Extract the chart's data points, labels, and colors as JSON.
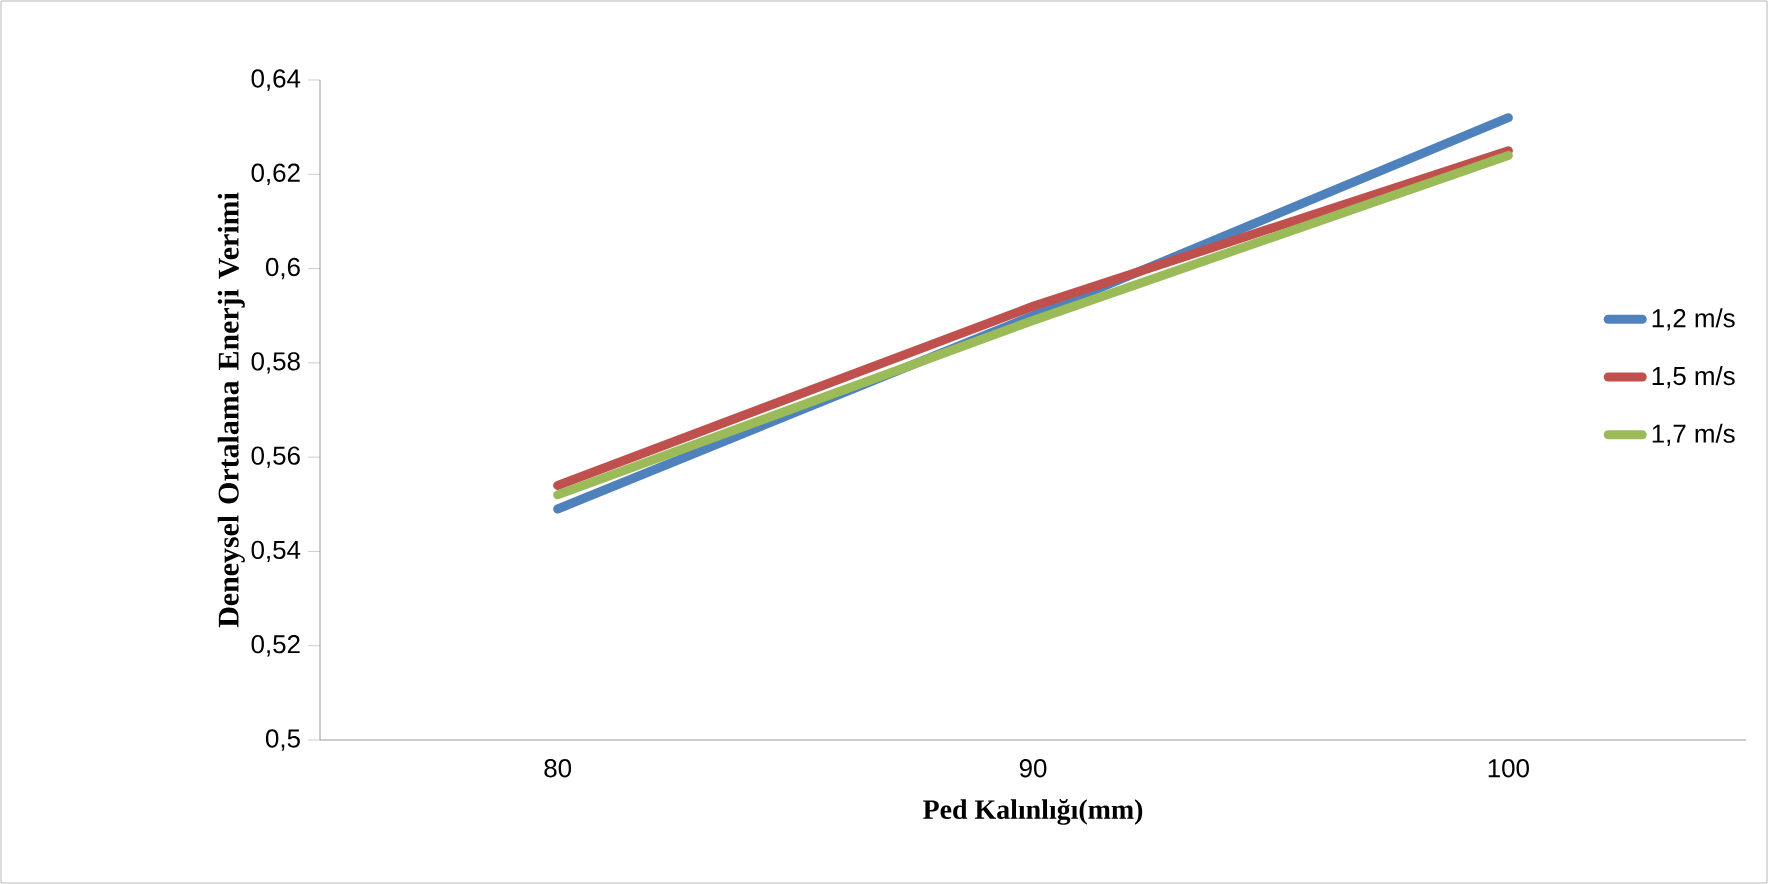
{
  "chart_data": {
    "type": "line",
    "xlabel": "Ped Kalınlığı(mm)",
    "ylabel": "Deneysel Ortalama Enerji Verimi",
    "categories": [
      "80",
      "90",
      "100"
    ],
    "series": [
      {
        "name": "1,2 m/s",
        "color": "#4f81bd",
        "values": [
          0.549,
          0.59,
          0.632
        ]
      },
      {
        "name": "1,5 m/s",
        "color": "#c0504d",
        "values": [
          0.554,
          0.592,
          0.625
        ]
      },
      {
        "name": "1,7 m/s",
        "color": "#9bbb59",
        "values": [
          0.552,
          0.589,
          0.624
        ]
      }
    ],
    "ylim": [
      0.5,
      0.64
    ],
    "yticks": [
      {
        "value": 0.5,
        "label": "0,5"
      },
      {
        "value": 0.52,
        "label": "0,52"
      },
      {
        "value": 0.54,
        "label": "0,54"
      },
      {
        "value": 0.56,
        "label": "0,56"
      },
      {
        "value": 0.58,
        "label": "0,58"
      },
      {
        "value": 0.6,
        "label": "0,6"
      },
      {
        "value": 0.62,
        "label": "0,62"
      },
      {
        "value": 0.64,
        "label": "0,64"
      }
    ],
    "grid": false,
    "legend": "right",
    "marker": "none",
    "line_style": "solid"
  }
}
